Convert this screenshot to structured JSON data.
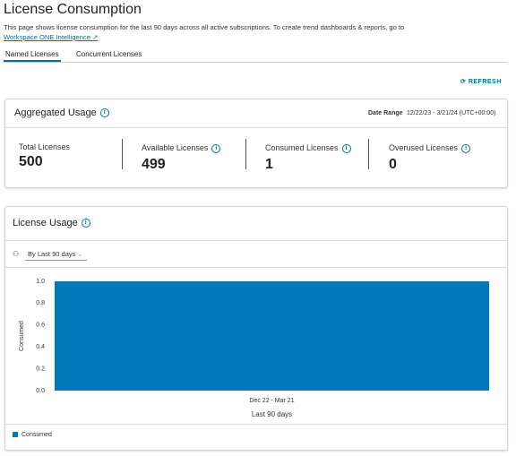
{
  "header": {
    "title": "License Consumption",
    "description": "This page shows license consumption for the last 90 days across all active subscriptions. To create trend dashboards & reports, go to",
    "link": "Workspace ONE Intelligence"
  },
  "tabs": [
    {
      "label": "Named Licenses",
      "active": true
    },
    {
      "label": "Concurrent Licenses",
      "active": false
    }
  ],
  "refresh": "REFRESH",
  "aggregated_usage": {
    "title": "Aggregated Usage",
    "date_range_label": "Date Range",
    "date_range": "12/22/23 - 3/21/24 (UTC+00:00)",
    "stats": [
      {
        "label": "Total Licenses",
        "value": 500
      },
      {
        "label": "Available Licenses",
        "value": 499
      },
      {
        "label": "Consumed Licenses",
        "value": 1
      },
      {
        "label": "Overused Licenses",
        "value": 0
      }
    ]
  },
  "license_usage": {
    "title": "License Usage",
    "filter": "By Last 90 days"
  },
  "chart_data": {
    "type": "bar",
    "categories": [
      "Dec 22 - Mar 21"
    ],
    "series": [
      {
        "name": "Consumed",
        "color": "#0079b8",
        "values": [
          1
        ]
      }
    ],
    "x_label": "Last 90 days",
    "y_label": "Consumed",
    "ylim": [
      0,
      1
    ],
    "yticks": [
      {
        "value": 0,
        "label": "0.0"
      },
      0.2,
      0.4,
      0.6,
      0.8,
      {
        "value": 1,
        "label": "1.0"
      }
    ],
    "grid": false,
    "legend": "bottom-left"
  }
}
